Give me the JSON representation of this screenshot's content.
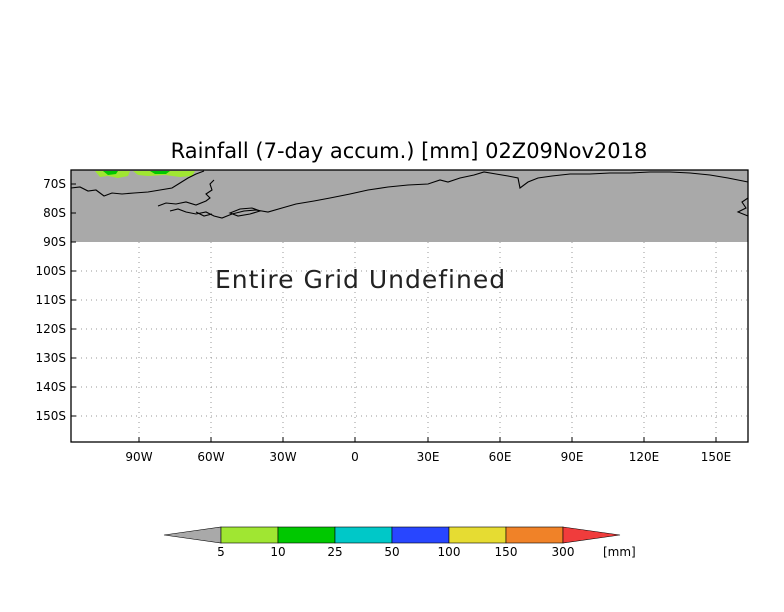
{
  "title": "Rainfall (7-day accum.) [mm] 02Z09Nov2018",
  "message": "Entire Grid Undefined",
  "lat_labels": [
    "70S",
    "80S",
    "90S",
    "100S",
    "110S",
    "120S",
    "130S",
    "140S",
    "150S"
  ],
  "lon_labels": [
    "90W",
    "60W",
    "30W",
    "0",
    "30E",
    "60E",
    "90E",
    "120E",
    "150E"
  ],
  "colorbar": {
    "unit": "[mm]",
    "thresholds": [
      "5",
      "10",
      "25",
      "50",
      "100",
      "150",
      "300"
    ],
    "colors": [
      "#a9a9a9",
      "#a0e632",
      "#00c800",
      "#00c8c8",
      "#2846ff",
      "#e6dc32",
      "#f08228",
      "#f03c3c"
    ]
  },
  "colors": {
    "undefined_fill": "#a9a9a9",
    "grid_line": "#999999",
    "coastline": "#000000",
    "rain_light": "#a0e632",
    "rain_mod": "#00c800"
  }
}
